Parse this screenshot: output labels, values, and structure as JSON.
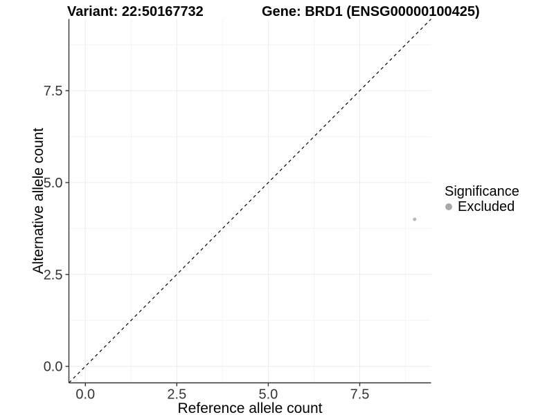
{
  "header": {
    "title_variant": "Variant: 22:50167732",
    "title_gene": "Gene: BRD1 (ENSG00000100425)"
  },
  "legend": {
    "title": "Significance",
    "items": [
      {
        "label": "Excluded",
        "color": "#a9a9a9"
      }
    ]
  },
  "chart_data": {
    "type": "scatter",
    "title": "Variant: 22:50167732 — Gene: BRD1 (ENSG00000100425)",
    "xlabel": "Reference allele count",
    "ylabel": "Alternative allele count",
    "xlim": [
      -0.45,
      9.45
    ],
    "ylim": [
      -0.45,
      9.45
    ],
    "xticks": [
      0.0,
      2.5,
      5.0,
      7.5
    ],
    "yticks": [
      0.0,
      2.5,
      5.0,
      7.5
    ],
    "xtick_labels": [
      "0.0",
      "2.5",
      "5.0",
      "7.5"
    ],
    "ytick_labels": [
      "0.0",
      "2.5",
      "5.0",
      "7.5"
    ],
    "minor_breaks": [
      1.25,
      3.75,
      6.25,
      8.75
    ],
    "grid": "major+minor",
    "legend_position": "right",
    "legend_title": "Significance",
    "series": [
      {
        "name": "Excluded",
        "color": "#b8b8b8",
        "point_radius": 2.5,
        "points": [
          {
            "x": 9,
            "y": 4
          }
        ]
      }
    ],
    "reference_line": {
      "type": "identity y=x",
      "linestyle": "dashed",
      "color": "#000000"
    },
    "colors": {
      "axis": "#333333",
      "tick_label": "#333333",
      "grid_major": "#ececec",
      "grid_minor": "#f4f4f4",
      "background": "#ffffff"
    }
  }
}
